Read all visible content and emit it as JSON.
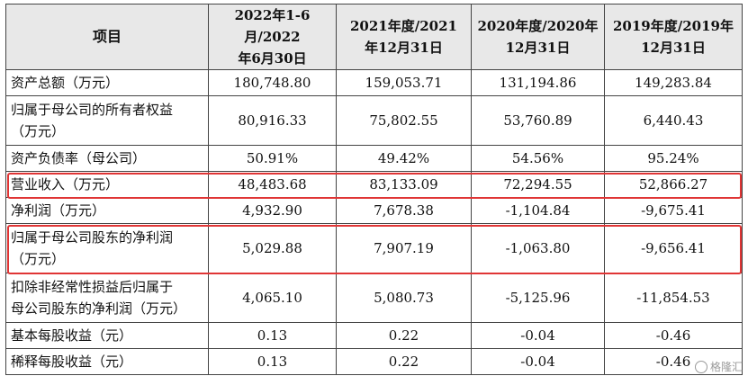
{
  "table": {
    "headers": [
      [
        "项目"
      ],
      [
        "2022年1-6月/2022",
        "年6月30日"
      ],
      [
        "2021年度/2021",
        "年12月31日"
      ],
      [
        "2020年度/2020年",
        "12月31日"
      ],
      [
        "2019年度/2019年",
        "12月31日"
      ]
    ],
    "rows": [
      {
        "label": [
          "资产总额（万元）"
        ],
        "values": [
          "180,748.80",
          "159,053.71",
          "131,194.86",
          "149,283.84"
        ]
      },
      {
        "label": [
          "归属于母公司的所有者权益",
          "（万元）"
        ],
        "values": [
          "80,916.33",
          "75,802.55",
          "53,760.89",
          "6,440.43"
        ]
      },
      {
        "label": [
          "资产负债率（母公司）"
        ],
        "values": [
          "50.91%",
          "49.42%",
          "54.56%",
          "95.24%"
        ]
      },
      {
        "label": [
          "营业收入（万元）"
        ],
        "values": [
          "48,483.68",
          "83,133.09",
          "72,294.55",
          "52,866.27"
        ]
      },
      {
        "label": [
          "净利润（万元）"
        ],
        "values": [
          "4,932.90",
          "7,678.38",
          "-1,104.84",
          "-9,675.41"
        ]
      },
      {
        "label": [
          "归属于母公司股东的净利润",
          "（万元）"
        ],
        "values": [
          "5,029.88",
          "7,907.19",
          "-1,063.80",
          "-9,656.41"
        ]
      },
      {
        "label": [
          "扣除非经常性损益后归属于",
          "母公司股东的净利润（万元）"
        ],
        "values": [
          "4,065.10",
          "5,080.73",
          "-5,125.96",
          "-11,854.53"
        ]
      },
      {
        "label": [
          "基本每股收益（元）"
        ],
        "values": [
          "0.13",
          "0.22",
          "-0.04",
          "-0.46"
        ]
      },
      {
        "label": [
          "稀释每股收益（元）"
        ],
        "values": [
          "0.13",
          "0.22",
          "-0.04",
          "-0.46"
        ]
      }
    ]
  },
  "highlight_color": "#e03535",
  "watermark": {
    "text": "格隆汇",
    "icon": "gelonghui-logo-icon"
  }
}
